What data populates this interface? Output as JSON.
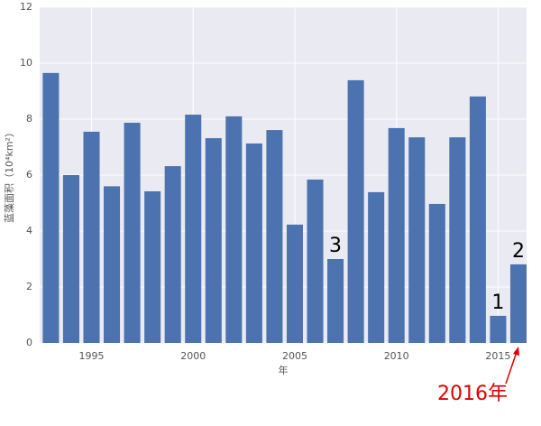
{
  "chart_data": {
    "type": "bar",
    "xlabel": "年",
    "ylabel": "蓝藻面积（10⁴km²）",
    "x": [
      1993,
      1994,
      1995,
      1996,
      1997,
      1998,
      1999,
      2000,
      2001,
      2002,
      2003,
      2004,
      2005,
      2006,
      2007,
      2008,
      2009,
      2010,
      2011,
      2012,
      2013,
      2014,
      2015,
      2016
    ],
    "values": [
      9.65,
      6.0,
      7.55,
      5.6,
      7.87,
      5.42,
      6.32,
      8.16,
      7.32,
      8.1,
      7.13,
      7.61,
      4.23,
      5.84,
      3.0,
      9.39,
      5.39,
      7.68,
      7.35,
      4.97,
      7.35,
      8.81,
      0.97,
      2.81
    ],
    "color": "#4c72b0",
    "xlim": [
      1992.45,
      2016.4
    ],
    "xticks": [
      1995,
      2000,
      2005,
      2010,
      2015
    ],
    "ylim": [
      0,
      12
    ],
    "yticks": [
      0,
      2,
      4,
      6,
      8,
      10,
      12
    ],
    "grid": true,
    "annotations": [
      {
        "text": "3",
        "x": 2007
      },
      {
        "text": "1",
        "x": 2015
      },
      {
        "text": "2",
        "x": 2016
      },
      {
        "text": "2016年",
        "x": 2016,
        "color": "#e00000"
      }
    ]
  }
}
